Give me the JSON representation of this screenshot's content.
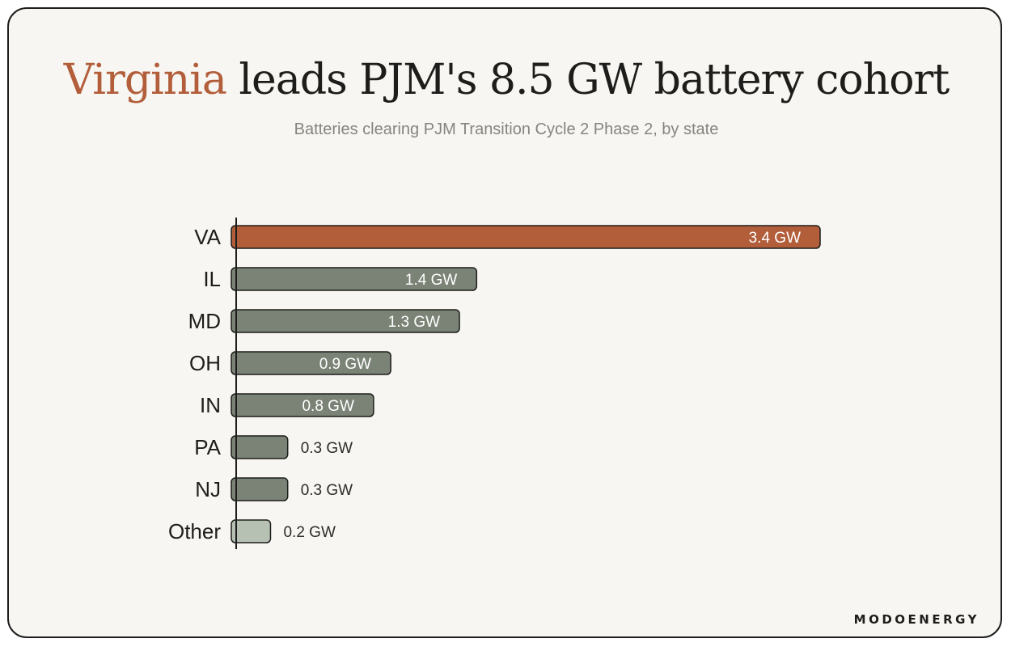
{
  "header": {
    "title_accent": "Virginia",
    "title_rest": " leads PJM's 8.5 GW battery cohort",
    "subtitle": "Batteries clearing PJM Transition Cycle 2 Phase 2, by state"
  },
  "brand": "MODOENERGY",
  "colors": {
    "highlight": "#b25e3b",
    "state_bar": "#7b8376",
    "other_bar": "#b7c1b3",
    "outline": "#1d1d1b",
    "background": "#f8f6f2"
  },
  "chart_data": {
    "type": "bar",
    "orientation": "horizontal",
    "unit": "GW",
    "categories": [
      "VA",
      "IL",
      "MD",
      "OH",
      "IN",
      "PA",
      "NJ",
      "Other"
    ],
    "values": [
      3.4,
      1.4,
      1.3,
      0.9,
      0.8,
      0.3,
      0.3,
      0.2
    ],
    "labels": [
      "3.4 GW",
      "1.4 GW",
      "1.3 GW",
      "0.9 GW",
      "0.8 GW",
      "0.3 GW",
      "0.3 GW",
      "0.2 GW"
    ],
    "title": "Virginia leads PJM's 8.5 GW battery cohort",
    "subtitle": "Batteries clearing PJM Transition Cycle 2 Phase 2, by state",
    "xlabel": "",
    "ylabel": "",
    "xlim": [
      0,
      3.5
    ],
    "grid": false,
    "legend": "none"
  }
}
